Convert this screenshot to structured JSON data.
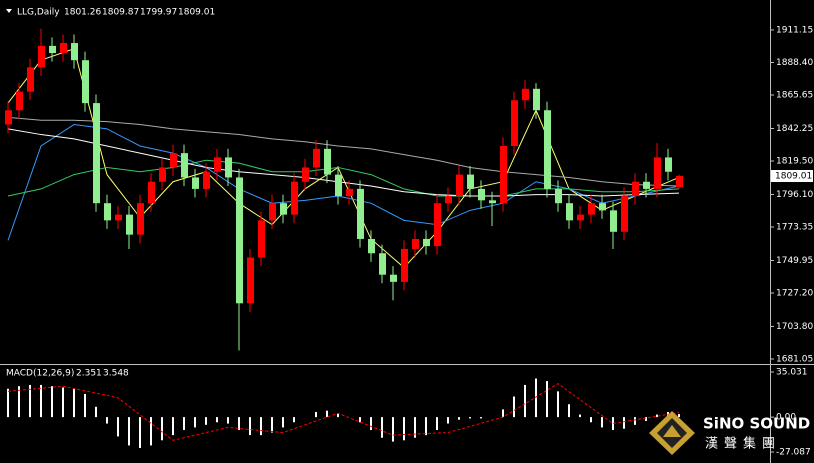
{
  "chart_data": [
    {
      "type": "candlestick",
      "symbol": "LLG,Daily",
      "up_color": "#ff0000",
      "down_color": "#90ee90",
      "open": [
        1845,
        1855,
        1868,
        1885,
        1900,
        1895,
        1902,
        1890,
        1860,
        1790,
        1778,
        1782,
        1768,
        1790,
        1805,
        1815,
        1825,
        1808,
        1800,
        1812,
        1822,
        1808,
        1720,
        1752,
        1778,
        1790,
        1782,
        1805,
        1815,
        1828,
        1810,
        1795,
        1800,
        1765,
        1755,
        1740,
        1735,
        1758,
        1765,
        1760,
        1790,
        1795,
        1810,
        1800,
        1792,
        1790,
        1830,
        1862,
        1870,
        1855,
        1800,
        1790,
        1778,
        1782,
        1790,
        1785,
        1770,
        1795,
        1805,
        1800,
        1822,
        1801.26
      ],
      "high": [
        1861,
        1874,
        1891,
        1912,
        1906,
        1908,
        1908,
        1896,
        1866,
        1796,
        1788,
        1788,
        1796,
        1811,
        1821,
        1831,
        1831,
        1814,
        1818,
        1828,
        1828,
        1814,
        1758,
        1784,
        1796,
        1796,
        1811,
        1821,
        1834,
        1834,
        1816,
        1806,
        1806,
        1771,
        1761,
        1746,
        1764,
        1771,
        1771,
        1796,
        1801,
        1816,
        1816,
        1806,
        1798,
        1836,
        1868,
        1876,
        1874,
        1861,
        1806,
        1796,
        1788,
        1796,
        1796,
        1791,
        1801,
        1811,
        1811,
        1832,
        1828,
        1809.87
      ],
      "low": [
        1839,
        1849,
        1862,
        1879,
        1889,
        1889,
        1884,
        1854,
        1784,
        1772,
        1772,
        1758,
        1762,
        1784,
        1799,
        1809,
        1802,
        1794,
        1794,
        1806,
        1802,
        1687,
        1714,
        1746,
        1772,
        1776,
        1776,
        1799,
        1809,
        1804,
        1789,
        1789,
        1759,
        1749,
        1734,
        1722,
        1729,
        1752,
        1754,
        1754,
        1784,
        1789,
        1794,
        1786,
        1774,
        1784,
        1824,
        1856,
        1849,
        1794,
        1784,
        1772,
        1772,
        1776,
        1779,
        1758,
        1764,
        1789,
        1794,
        1794,
        1806,
        1799.97
      ],
      "close": [
        1855,
        1868,
        1885,
        1900,
        1895,
        1902,
        1890,
        1860,
        1790,
        1778,
        1782,
        1768,
        1790,
        1805,
        1815,
        1825,
        1808,
        1800,
        1812,
        1822,
        1808,
        1720,
        1752,
        1778,
        1790,
        1782,
        1805,
        1815,
        1828,
        1810,
        1795,
        1800,
        1765,
        1755,
        1740,
        1735,
        1758,
        1765,
        1760,
        1790,
        1795,
        1810,
        1800,
        1792,
        1790,
        1830,
        1862,
        1870,
        1855,
        1800,
        1790,
        1778,
        1782,
        1790,
        1785,
        1770,
        1795,
        1805,
        1800,
        1822,
        1812,
        1809.01
      ],
      "series": [
        {
          "color": "#ffff66",
          "x": [
            0,
            3,
            6,
            9,
            12,
            15,
            18,
            21,
            24,
            27,
            30,
            33,
            36,
            39,
            42,
            45,
            48,
            51,
            54,
            57,
            61
          ],
          "values": [
            1860,
            1890,
            1898,
            1810,
            1780,
            1805,
            1812,
            1790,
            1775,
            1800,
            1815,
            1765,
            1745,
            1770,
            1800,
            1805,
            1855,
            1800,
            1785,
            1795,
            1808
          ]
        },
        {
          "color": "#3399ff",
          "x": [
            0,
            3,
            6,
            9,
            12,
            15,
            18,
            21,
            24,
            27,
            30,
            33,
            36,
            39,
            42,
            45,
            48,
            51,
            54,
            57,
            61
          ],
          "values": [
            1764,
            1830,
            1845,
            1842,
            1830,
            1825,
            1815,
            1800,
            1790,
            1792,
            1795,
            1790,
            1778,
            1775,
            1785,
            1790,
            1805,
            1800,
            1790,
            1795,
            1802
          ]
        },
        {
          "color": "#33cc66",
          "x": [
            0,
            3,
            6,
            9,
            12,
            15,
            18,
            21,
            24,
            27,
            30,
            33,
            36,
            39,
            42,
            45,
            48,
            51,
            54,
            57,
            61
          ],
          "values": [
            1795,
            1800,
            1810,
            1815,
            1812,
            1815,
            1820,
            1818,
            1812,
            1812,
            1815,
            1810,
            1800,
            1795,
            1795,
            1795,
            1800,
            1800,
            1798,
            1798,
            1800
          ]
        },
        {
          "color": "#aaaaaa",
          "x": [
            0,
            3,
            6,
            9,
            12,
            15,
            18,
            21,
            24,
            27,
            30,
            33,
            36,
            39,
            42,
            45,
            48,
            51,
            54,
            57,
            61
          ],
          "values": [
            1850,
            1848,
            1848,
            1847,
            1845,
            1842,
            1840,
            1838,
            1835,
            1833,
            1830,
            1828,
            1824,
            1820,
            1815,
            1812,
            1810,
            1808,
            1805,
            1803,
            1802
          ]
        },
        {
          "color": "#ffffff",
          "x": [
            0,
            3,
            6,
            9,
            12,
            15,
            18,
            21,
            24,
            27,
            30,
            33,
            36,
            39,
            42,
            45,
            48,
            51,
            54,
            57,
            61
          ],
          "values": [
            1842,
            1838,
            1835,
            1830,
            1825,
            1820,
            1815,
            1812,
            1810,
            1808,
            1805,
            1802,
            1798,
            1796,
            1795,
            1795,
            1796,
            1796,
            1795,
            1796,
            1797
          ]
        }
      ],
      "ylim": [
        1678.25,
        1926.5
      ],
      "yticks": [
        1911.15,
        {
          "value": 1888.4,
          "label": "1888.40"
        },
        1865.65,
        1842.25,
        {
          "value": 1819.5,
          "label": "1819.50"
        },
        {
          "value": 1796.1,
          "label": "1796.10"
        },
        1773.35,
        1749.95,
        {
          "value": 1727.2,
          "label": "1727.20"
        },
        {
          "value": 1703.8,
          "label": "1703.80"
        },
        1681.05
      ]
    },
    {
      "type": "macd",
      "title": "MACD(12,26,9)",
      "values": [
        22,
        24,
        25,
        25,
        24,
        23,
        22,
        18,
        8,
        -5,
        -15,
        -22,
        -24,
        -22,
        -18,
        -14,
        -10,
        -8,
        -6,
        -4,
        -5,
        -10,
        -14,
        -14,
        -12,
        -8,
        -4,
        0,
        4,
        5,
        3,
        0,
        -4,
        -10,
        -16,
        -19,
        -18,
        -16,
        -14,
        -10,
        -5,
        -2,
        -1,
        -1,
        0,
        6,
        16,
        25,
        30,
        28,
        20,
        10,
        2,
        -4,
        -8,
        -10,
        -9,
        -6,
        -3,
        2,
        4,
        2.351
      ],
      "color": "#ffffff",
      "signal": {
        "color": "#ff0000",
        "x": [
          0,
          5,
          10,
          15,
          20,
          25,
          30,
          35,
          40,
          45,
          50,
          55,
          61
        ],
        "values": [
          20,
          24,
          15,
          -18,
          -8,
          -12,
          3,
          -14,
          -12,
          0,
          26,
          -5,
          3.548
        ]
      },
      "ylim": [
        -35.63,
        39.69
      ],
      "yticks": [
        35.031,
        {
          "value": 0,
          "label": "0.00"
        },
        -27.087
      ]
    }
  ],
  "watermark": {
    "brand": "SiNO SOUND",
    "chinese": "漢聲集團"
  }
}
